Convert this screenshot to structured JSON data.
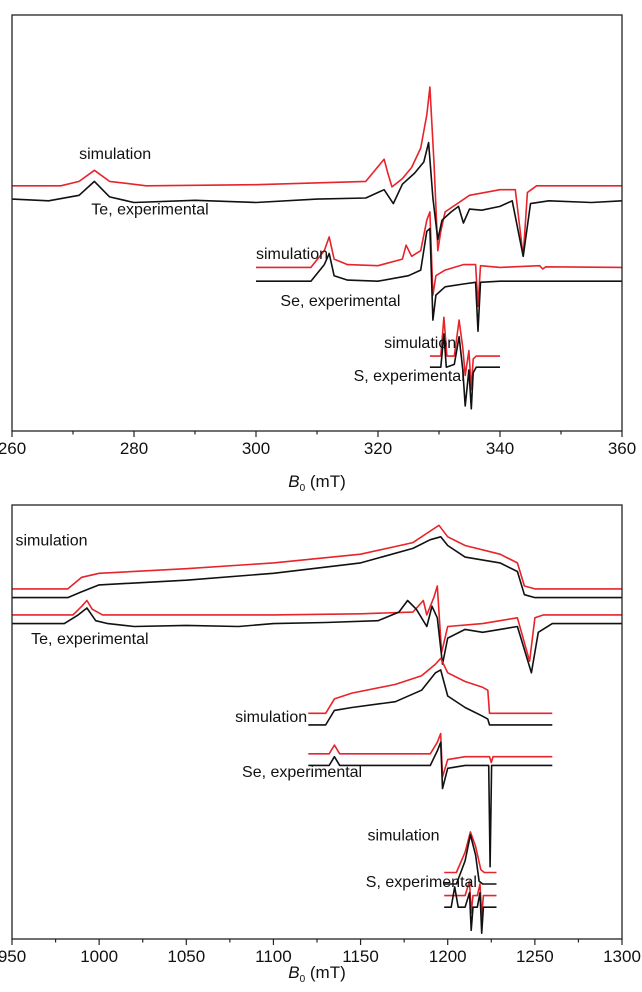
{
  "chart_data": [
    {
      "type": "line",
      "panel": "top",
      "xlabel": "B0 (mT)",
      "xlim": [
        260,
        360
      ],
      "xticks": [
        260,
        280,
        300,
        320,
        340,
        360
      ],
      "ylim": [
        -4,
        3.5
      ],
      "colors": {
        "simulation": "#e8232a",
        "experimental": "#111111"
      },
      "annotations": [
        {
          "text": "simulation",
          "x": 271,
          "y": 0.9
        },
        {
          "text": "Te, experimental",
          "x": 273,
          "y": -0.1
        },
        {
          "text": "simulation",
          "x": 300,
          "y": -0.9
        },
        {
          "text": "Se, experimental",
          "x": 304,
          "y": -1.75
        },
        {
          "text": "simulation",
          "x": 321,
          "y": -2.5
        },
        {
          "text": "S, experimental",
          "x": 316,
          "y": -3.1
        }
      ],
      "series": [
        {
          "sample": "Te",
          "kind": "simulation",
          "color": "#e8232a",
          "x": [
            260,
            268,
            271,
            273.5,
            276,
            282,
            300,
            318,
            321,
            321.6,
            322.3,
            324,
            325.5,
            327,
            328,
            328.5,
            329.2,
            329.8,
            330.3,
            331,
            333,
            335,
            340,
            342.5,
            343.8,
            344.5,
            346,
            352,
            360
          ],
          "y": [
            0.42,
            0.42,
            0.5,
            0.7,
            0.5,
            0.42,
            0.44,
            0.5,
            0.9,
            0.65,
            0.4,
            0.55,
            0.75,
            1.1,
            1.7,
            2.2,
            0.8,
            -0.75,
            -0.4,
            -0.05,
            0.1,
            0.25,
            0.35,
            0.35,
            -0.85,
            0.3,
            0.42,
            0.42,
            0.42
          ]
        },
        {
          "sample": "Te",
          "kind": "experimental",
          "color": "#111111",
          "x": [
            260,
            266,
            271,
            273.5,
            276,
            280,
            290,
            300,
            310,
            318,
            321,
            322.5,
            324,
            326,
            327.5,
            328.3,
            329,
            329.8,
            330.5,
            332,
            333.2,
            334,
            335,
            337,
            340,
            342,
            343.8,
            345,
            348,
            355,
            360
          ],
          "y": [
            0.18,
            0.15,
            0.25,
            0.5,
            0.22,
            0.12,
            0.16,
            0.12,
            0.18,
            0.2,
            0.35,
            0.1,
            0.45,
            0.65,
            0.85,
            1.2,
            0.2,
            -0.55,
            -0.2,
            -0.05,
            0.05,
            -0.25,
            0.0,
            -0.02,
            0.05,
            0.15,
            -0.85,
            0.1,
            0.15,
            0.12,
            0.15
          ]
        },
        {
          "sample": "Se",
          "kind": "simulation",
          "color": "#e8232a",
          "x": [
            300,
            309,
            311.2,
            312,
            312.8,
            315,
            320,
            324,
            324.6,
            325.5,
            327,
            328,
            328.5,
            329,
            329.5,
            331,
            334,
            336,
            336.4,
            336.8,
            340,
            346.5,
            347,
            347.5,
            360
          ],
          "y": [
            -1.05,
            -1.05,
            -0.75,
            -0.5,
            -0.9,
            -1.0,
            -1.02,
            -0.9,
            -0.65,
            -0.85,
            -0.75,
            -0.2,
            -0.05,
            -1.55,
            -1.2,
            -1.1,
            -1.0,
            -1.0,
            -1.75,
            -1.02,
            -1.05,
            -1.02,
            -1.08,
            -1.04,
            -1.05
          ]
        },
        {
          "sample": "Se",
          "kind": "experimental",
          "color": "#111111",
          "x": [
            300,
            309,
            311.2,
            312,
            312.8,
            315,
            320,
            325,
            327,
            328,
            328.5,
            329,
            329.5,
            331,
            334,
            336,
            336.4,
            336.8,
            340,
            360
          ],
          "y": [
            -1.3,
            -1.3,
            -1.0,
            -0.8,
            -1.2,
            -1.28,
            -1.3,
            -1.2,
            -1.1,
            -0.4,
            -0.35,
            -2.0,
            -1.55,
            -1.4,
            -1.35,
            -1.32,
            -2.2,
            -1.32,
            -1.3,
            -1.3
          ]
        },
        {
          "sample": "S",
          "kind": "simulation",
          "color": "#e8232a",
          "x": [
            328.5,
            330.3,
            330.8,
            331.3,
            332.5,
            333.3,
            333.9,
            334.3,
            334.9,
            335.3,
            335.6,
            336.1,
            340
          ],
          "y": [
            -2.65,
            -2.65,
            -1.95,
            -2.65,
            -2.65,
            -2.0,
            -2.5,
            -3.0,
            -2.55,
            -3.25,
            -2.7,
            -2.65,
            -2.65
          ]
        },
        {
          "sample": "S",
          "kind": "experimental",
          "color": "#111111",
          "x": [
            328.5,
            330.3,
            330.8,
            331.2,
            332.5,
            333.3,
            333.9,
            334.3,
            334.9,
            335.3,
            335.6,
            336.1,
            340
          ],
          "y": [
            -2.85,
            -2.85,
            -2.25,
            -2.85,
            -2.8,
            -2.3,
            -2.9,
            -3.55,
            -2.9,
            -3.6,
            -2.95,
            -2.85,
            -2.85
          ]
        }
      ]
    },
    {
      "type": "line",
      "panel": "bottom",
      "xlabel": "B0 (mT)",
      "xlim": [
        950,
        1300
      ],
      "xticks": [
        950,
        1000,
        1050,
        1100,
        1150,
        1200,
        1250,
        1300
      ],
      "ylim": [
        -4,
        3.5
      ],
      "colors": {
        "simulation": "#e8232a",
        "experimental": "#111111"
      },
      "annotations": [
        {
          "text": "simulation",
          "x": 952,
          "y": 2.8
        },
        {
          "text": "Te, experimental",
          "x": 961,
          "y": 1.1
        },
        {
          "text": "simulation",
          "x": 1078,
          "y": -0.25
        },
        {
          "text": "Se, experimental",
          "x": 1082,
          "y": -1.2
        },
        {
          "text": "simulation",
          "x": 1154,
          "y": -2.3
        },
        {
          "text": "S, experimental",
          "x": 1153,
          "y": -3.1
        }
      ],
      "series": [
        {
          "sample": "Te",
          "kind": "simulation",
          "color": "#e8232a",
          "x": [
            950,
            982,
            990,
            1000,
            1050,
            1100,
            1150,
            1180,
            1190,
            1195,
            1200,
            1210,
            1230,
            1240,
            1244,
            1250,
            1300
          ],
          "y": [
            2.05,
            2.05,
            2.25,
            2.32,
            2.4,
            2.5,
            2.65,
            2.85,
            3.05,
            3.15,
            2.95,
            2.8,
            2.65,
            2.5,
            2.1,
            2.05,
            2.05
          ]
        },
        {
          "sample": "Te",
          "kind": "experimental",
          "color": "#111111",
          "x": [
            950,
            982,
            990,
            1000,
            1050,
            1100,
            1150,
            1180,
            1190,
            1196,
            1200,
            1210,
            1230,
            1240,
            1244,
            1250,
            1300
          ],
          "y": [
            1.9,
            1.9,
            2.0,
            2.12,
            2.2,
            2.32,
            2.5,
            2.75,
            2.9,
            2.95,
            2.8,
            2.6,
            2.5,
            2.35,
            1.95,
            1.9,
            1.9
          ]
        },
        {
          "sample": "Te",
          "kind": "simulation",
          "color": "#e8232a",
          "x": [
            950,
            985,
            990,
            993,
            996,
            1002,
            1050,
            1100,
            1150,
            1180,
            1186,
            1188,
            1192,
            1194,
            1196.5,
            1200,
            1220,
            1240,
            1247,
            1250,
            1255,
            1300
          ],
          "y": [
            1.6,
            1.6,
            1.75,
            1.85,
            1.7,
            1.6,
            1.6,
            1.6,
            1.62,
            1.65,
            1.85,
            1.6,
            1.9,
            2.1,
            0.95,
            1.4,
            1.45,
            1.55,
            0.8,
            1.55,
            1.6,
            1.6
          ]
        },
        {
          "sample": "Te",
          "kind": "experimental",
          "color": "#111111",
          "x": [
            950,
            980,
            988,
            993,
            998,
            1005,
            1020,
            1050,
            1080,
            1100,
            1130,
            1160,
            1172,
            1177,
            1182,
            1188,
            1191,
            1194,
            1197,
            1200,
            1210,
            1220,
            1230,
            1240,
            1248,
            1252,
            1260,
            1300
          ],
          "y": [
            1.45,
            1.45,
            1.6,
            1.72,
            1.5,
            1.45,
            1.4,
            1.42,
            1.4,
            1.45,
            1.47,
            1.5,
            1.65,
            1.85,
            1.7,
            1.4,
            1.75,
            1.55,
            0.75,
            1.2,
            1.35,
            1.3,
            1.35,
            1.4,
            0.6,
            1.3,
            1.45,
            1.45
          ]
        },
        {
          "sample": "Se",
          "kind": "simulation",
          "color": "#e8232a",
          "x": [
            1120,
            1130,
            1135,
            1145,
            1170,
            1185,
            1193,
            1196,
            1200,
            1210,
            1220,
            1223,
            1224,
            1230,
            1260
          ],
          "y": [
            -0.1,
            -0.1,
            0.15,
            0.25,
            0.4,
            0.55,
            0.75,
            0.85,
            0.6,
            0.45,
            0.35,
            0.3,
            -0.1,
            -0.1,
            -0.1
          ]
        },
        {
          "sample": "Se",
          "kind": "experimental",
          "color": "#111111",
          "x": [
            1120,
            1130,
            1135,
            1145,
            1170,
            1185,
            1193,
            1196,
            1200,
            1210,
            1220,
            1223,
            1224,
            1230,
            1260
          ],
          "y": [
            -0.3,
            -0.3,
            -0.05,
            0.0,
            0.1,
            0.3,
            0.6,
            0.65,
            0.2,
            0.0,
            -0.15,
            -0.2,
            -0.3,
            -0.3,
            -0.3
          ]
        },
        {
          "sample": "Se",
          "kind": "simulation",
          "color": "#e8232a",
          "x": [
            1120,
            1132,
            1135,
            1138,
            1150,
            1190,
            1194,
            1196,
            1197,
            1200,
            1210,
            1224,
            1225,
            1226,
            1260
          ],
          "y": [
            -0.8,
            -0.8,
            -0.65,
            -0.8,
            -0.8,
            -0.8,
            -0.6,
            -0.45,
            -1.2,
            -0.9,
            -0.85,
            -0.85,
            -0.95,
            -0.85,
            -0.85
          ]
        },
        {
          "sample": "Se",
          "kind": "experimental",
          "color": "#111111",
          "x": [
            1120,
            1132,
            1135,
            1138,
            1150,
            1190,
            1194,
            1196,
            1197,
            1200,
            1210,
            1223.5,
            1224.3,
            1225.2,
            1230,
            1260
          ],
          "y": [
            -1.0,
            -1.0,
            -0.85,
            -1.0,
            -1.0,
            -1.0,
            -0.75,
            -0.6,
            -1.4,
            -1.05,
            -1.0,
            -1.0,
            -2.75,
            -1.0,
            -1.0,
            -1.0
          ]
        },
        {
          "sample": "S",
          "kind": "simulation",
          "color": "#e8232a",
          "x": [
            1198,
            1205,
            1210,
            1213,
            1216,
            1219,
            1221,
            1228
          ],
          "y": [
            -2.85,
            -2.85,
            -2.5,
            -2.15,
            -2.4,
            -2.8,
            -2.85,
            -2.85
          ]
        },
        {
          "sample": "S",
          "kind": "experimental",
          "color": "#111111",
          "x": [
            1198,
            1205,
            1210,
            1213,
            1216,
            1218,
            1220,
            1228
          ],
          "y": [
            -3.05,
            -3.05,
            -2.65,
            -2.2,
            -2.55,
            -3.0,
            -3.05,
            -3.05
          ]
        },
        {
          "sample": "S",
          "kind": "simulation",
          "color": "#e8232a",
          "x": [
            1198,
            1210,
            1212.5,
            1213.5,
            1214.5,
            1217,
            1218.5,
            1219.5,
            1220.5,
            1228
          ],
          "y": [
            -3.25,
            -3.25,
            -3.0,
            -3.55,
            -3.25,
            -3.25,
            -3.05,
            -3.6,
            -3.25,
            -3.25
          ]
        },
        {
          "sample": "S",
          "kind": "experimental",
          "color": "#111111",
          "x": [
            1198,
            1202,
            1204,
            1206,
            1210,
            1212.5,
            1213.5,
            1214.5,
            1217,
            1218.5,
            1219.5,
            1220.5,
            1228
          ],
          "y": [
            -3.45,
            -3.45,
            -3.1,
            -3.45,
            -3.45,
            -3.2,
            -3.85,
            -3.45,
            -3.45,
            -3.2,
            -3.9,
            -3.45,
            -3.45
          ]
        }
      ]
    }
  ]
}
